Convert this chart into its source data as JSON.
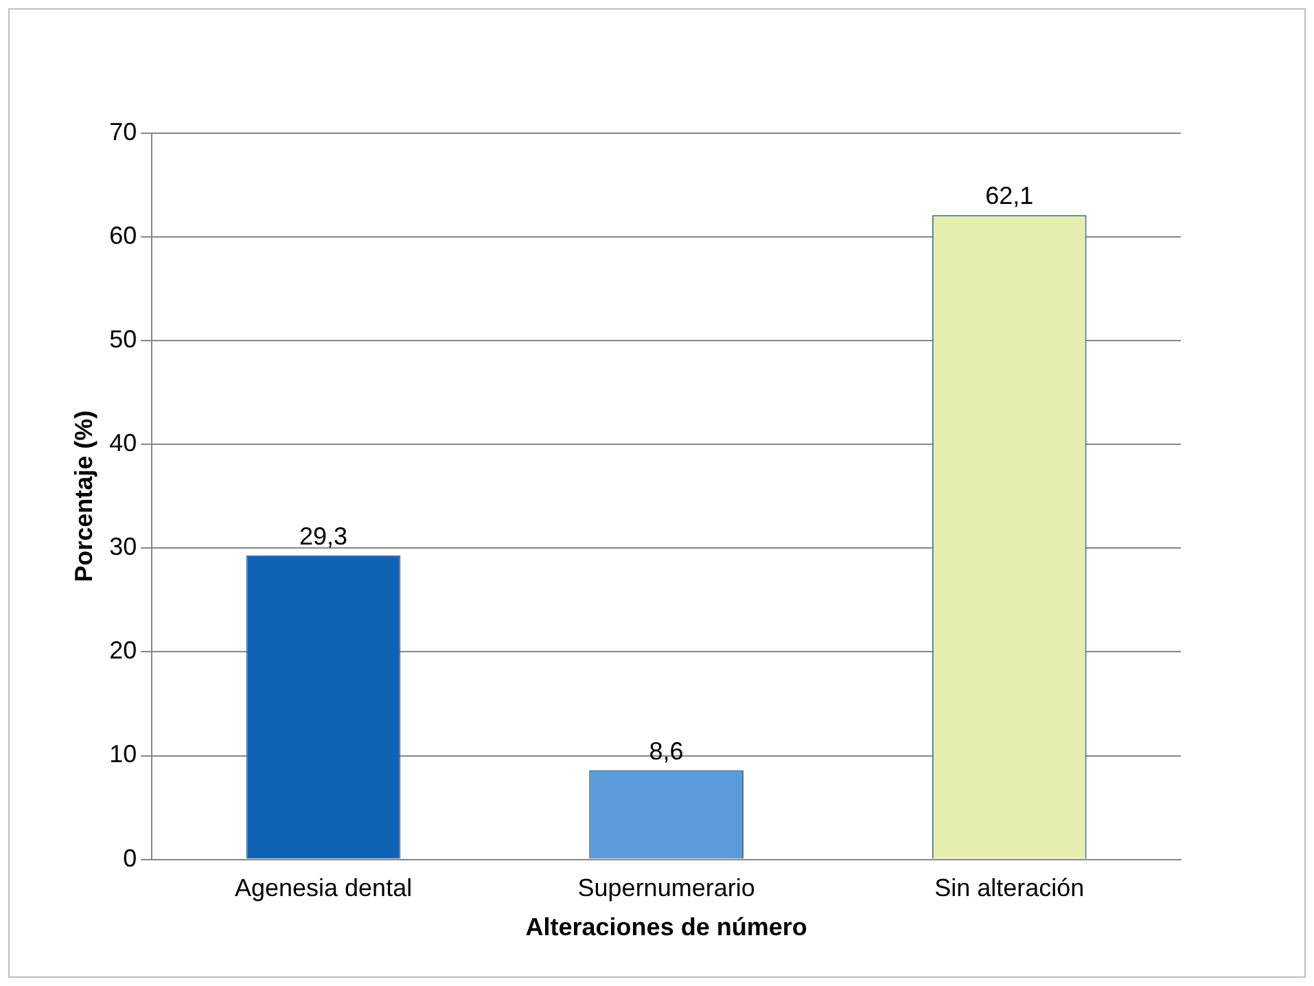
{
  "chart_data": {
    "type": "bar",
    "xlabel": "Alteraciones de número",
    "ylabel": "Porcentaje (%)",
    "categories": [
      "Agenesia dental",
      "Supernumerario",
      "Sin alteración"
    ],
    "values": [
      29.3,
      8.6,
      62.1
    ],
    "colors": [
      "#0f63b5",
      "#5b9bd9",
      "#e6eeb0"
    ],
    "value_labels": [
      "29,3",
      "8,6",
      "62,1"
    ],
    "ylim": [
      0,
      70
    ],
    "yticks": [
      0,
      10,
      20,
      30,
      40,
      50,
      60,
      70
    ],
    "grid": "y"
  }
}
